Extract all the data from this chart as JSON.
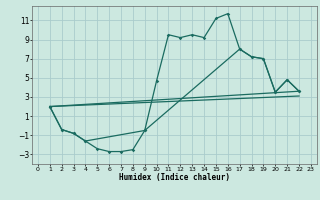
{
  "xlabel": "Humidex (Indice chaleur)",
  "bg_color": "#cce8e0",
  "grid_color": "#aacccc",
  "line_color": "#1a6b60",
  "xlim": [
    -0.5,
    23.5
  ],
  "ylim": [
    -4,
    12.5
  ],
  "xticks": [
    0,
    1,
    2,
    3,
    4,
    5,
    6,
    7,
    8,
    9,
    10,
    11,
    12,
    13,
    14,
    15,
    16,
    17,
    18,
    19,
    20,
    21,
    22,
    23
  ],
  "yticks": [
    -3,
    -1,
    1,
    3,
    5,
    7,
    9,
    11
  ],
  "curve1_x": [
    1,
    2,
    3,
    4,
    5,
    6,
    7,
    8,
    9,
    10,
    11,
    12,
    13,
    14,
    15,
    16,
    17,
    18,
    19,
    20,
    21,
    22
  ],
  "curve1_y": [
    2.0,
    -0.4,
    -0.8,
    -1.6,
    -2.4,
    -2.7,
    -2.7,
    -2.5,
    -0.5,
    4.7,
    9.5,
    9.2,
    9.5,
    9.2,
    11.2,
    11.7,
    8.0,
    7.2,
    7.0,
    3.5,
    4.8,
    3.6
  ],
  "curve2_x": [
    1,
    2,
    3,
    4,
    9,
    17,
    18,
    19,
    20,
    21,
    22
  ],
  "curve2_y": [
    2.0,
    -0.4,
    -0.8,
    -1.6,
    -0.5,
    8.0,
    7.2,
    7.0,
    3.5,
    4.8,
    3.6
  ],
  "line3_x": [
    1,
    22
  ],
  "line3_y": [
    2.0,
    3.1
  ],
  "line4_x": [
    1,
    22
  ],
  "line4_y": [
    2.0,
    3.6
  ]
}
